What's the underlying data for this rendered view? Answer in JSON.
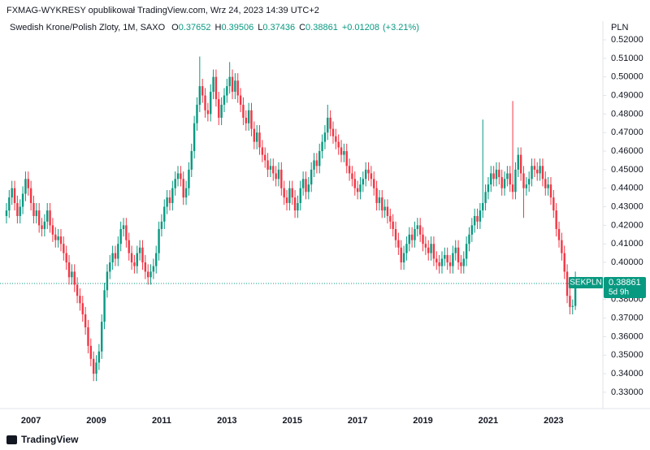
{
  "chart_data": {
    "type": "candlestick",
    "title": "FXMAG-WYKRESY opublikował TradingView.com, Wrz 24, 2023 14:39 UTC+2",
    "symbol": "Swedish Krone/Polish Zloty, 1M, SAXO",
    "ohlc_letters": [
      "O",
      "H",
      "L",
      "C"
    ],
    "change": "+0.01208",
    "change_pct": "(+3.21%)",
    "y_axis_label": "PLN",
    "ticker": "SEKPLN",
    "countdown": "5d 9h",
    "up_color": "#089981",
    "down_color": "#f23645",
    "ylim": [
      0.3212,
      0.5292
    ],
    "yticks": [
      {
        "value": 0.33,
        "label": "0.33000"
      },
      {
        "value": 0.34,
        "label": "0.34000"
      },
      {
        "value": 0.35,
        "label": "0.35000"
      },
      {
        "value": 0.36,
        "label": "0.36000"
      },
      {
        "value": 0.37,
        "label": "0.37000"
      },
      {
        "value": 0.38,
        "label": "0.38000"
      },
      {
        "value": 0.39,
        "label": "0.39000"
      },
      {
        "value": 0.4,
        "label": "0.40000"
      },
      {
        "value": 0.41,
        "label": "0.41000"
      },
      {
        "value": 0.42,
        "label": "0.42000"
      },
      {
        "value": 0.43,
        "label": "0.43000"
      },
      {
        "value": 0.44,
        "label": "0.44000"
      },
      {
        "value": 0.45,
        "label": "0.45000"
      },
      {
        "value": 0.46,
        "label": "0.46000"
      },
      {
        "value": 0.47,
        "label": "0.47000"
      },
      {
        "value": 0.48,
        "label": "0.48000"
      },
      {
        "value": 0.49,
        "label": "0.49000"
      },
      {
        "value": 0.5,
        "label": "0.50000"
      },
      {
        "value": 0.51,
        "label": "0.51000"
      },
      {
        "value": 0.52,
        "label": "0.52000"
      }
    ],
    "categories": [
      null,
      null,
      null,
      null,
      null,
      null,
      null,
      null,
      null,
      "2007",
      null,
      null,
      null,
      null,
      null,
      null,
      null,
      null,
      null,
      null,
      null,
      null,
      null,
      null,
      null,
      null,
      null,
      null,
      null,
      null,
      null,
      null,
      null,
      "2009",
      null,
      null,
      null,
      null,
      null,
      null,
      null,
      null,
      null,
      null,
      null,
      null,
      null,
      null,
      null,
      null,
      null,
      null,
      null,
      null,
      null,
      null,
      null,
      "2011",
      null,
      null,
      null,
      null,
      null,
      null,
      null,
      null,
      null,
      null,
      null,
      null,
      null,
      null,
      null,
      null,
      null,
      null,
      null,
      null,
      null,
      null,
      null,
      "2013",
      null,
      null,
      null,
      null,
      null,
      null,
      null,
      null,
      null,
      null,
      null,
      null,
      null,
      null,
      null,
      null,
      null,
      null,
      null,
      null,
      null,
      null,
      null,
      "2015",
      null,
      null,
      null,
      null,
      null,
      null,
      null,
      null,
      null,
      null,
      null,
      null,
      null,
      null,
      null,
      null,
      null,
      null,
      null,
      null,
      null,
      null,
      null,
      "2017",
      null,
      null,
      null,
      null,
      null,
      null,
      null,
      null,
      null,
      null,
      null,
      null,
      null,
      null,
      null,
      null,
      null,
      null,
      null,
      null,
      null,
      null,
      null,
      "2019",
      null,
      null,
      null,
      null,
      null,
      null,
      null,
      null,
      null,
      null,
      null,
      null,
      null,
      null,
      null,
      null,
      null,
      null,
      null,
      null,
      null,
      null,
      null,
      "2021",
      null,
      null,
      null,
      null,
      null,
      null,
      null,
      null,
      null,
      null,
      null,
      null,
      null,
      null,
      null,
      null,
      null,
      null,
      null,
      null,
      null,
      null,
      null,
      "2023",
      null,
      null,
      null,
      null,
      null,
      null,
      null,
      null
    ],
    "open": [
      0.425,
      0.428,
      0.435,
      0.44,
      0.432,
      0.425,
      0.43,
      0.437,
      0.445,
      0.44,
      0.432,
      0.425,
      0.428,
      0.42,
      0.418,
      0.422,
      0.428,
      0.42,
      0.415,
      0.412,
      0.414,
      0.41,
      0.405,
      0.4,
      0.392,
      0.395,
      0.388,
      0.382,
      0.378,
      0.372,
      0.365,
      0.355,
      0.348,
      0.34,
      0.346,
      0.352,
      0.368,
      0.385,
      0.395,
      0.4,
      0.405,
      0.402,
      0.41,
      0.418,
      0.42,
      0.412,
      0.405,
      0.4,
      0.398,
      0.405,
      0.408,
      0.4,
      0.395,
      0.392,
      0.395,
      0.398,
      0.405,
      0.418,
      0.422,
      0.43,
      0.435,
      0.432,
      0.44,
      0.445,
      0.448,
      0.445,
      0.435,
      0.44,
      0.45,
      0.46,
      0.475,
      0.485,
      0.495,
      0.49,
      0.482,
      0.48,
      0.492,
      0.5,
      0.488,
      0.478,
      0.485,
      0.49,
      0.495,
      0.5,
      0.492,
      0.498,
      0.49,
      0.485,
      0.478,
      0.475,
      0.482,
      0.472,
      0.465,
      0.47,
      0.462,
      0.458,
      0.455,
      0.45,
      0.452,
      0.448,
      0.445,
      0.45,
      0.44,
      0.435,
      0.432,
      0.44,
      0.435,
      0.428,
      0.432,
      0.44,
      0.445,
      0.438,
      0.442,
      0.45,
      0.455,
      0.452,
      0.46,
      0.465,
      0.47,
      0.478,
      0.472,
      0.468,
      0.465,
      0.462,
      0.458,
      0.46,
      0.452,
      0.448,
      0.445,
      0.44,
      0.438,
      0.442,
      0.445,
      0.45,
      0.448,
      0.445,
      0.44,
      0.432,
      0.435,
      0.428,
      0.43,
      0.425,
      0.422,
      0.418,
      0.412,
      0.408,
      0.4,
      0.405,
      0.41,
      0.415,
      0.412,
      0.418,
      0.42,
      0.415,
      0.41,
      0.408,
      0.405,
      0.41,
      0.402,
      0.4,
      0.398,
      0.402,
      0.404,
      0.4,
      0.398,
      0.405,
      0.408,
      0.4,
      0.398,
      0.402,
      0.41,
      0.415,
      0.42,
      0.425,
      0.422,
      0.428,
      0.432,
      0.438,
      0.442,
      0.448,
      0.445,
      0.45,
      0.446,
      0.44,
      0.445,
      0.448,
      0.442,
      0.438,
      0.45,
      0.458,
      0.448,
      0.44,
      0.442,
      0.445,
      0.452,
      0.45,
      0.448,
      0.452,
      0.445,
      0.44,
      0.442,
      0.435,
      0.428,
      0.418,
      0.412,
      0.405,
      0.395,
      0.382,
      0.376,
      0.37652
    ],
    "high": [
      0.432,
      0.439,
      0.444,
      0.444,
      0.436,
      0.434,
      0.441,
      0.449,
      0.449,
      0.444,
      0.436,
      0.432,
      0.432,
      0.424,
      0.426,
      0.432,
      0.432,
      0.424,
      0.419,
      0.418,
      0.418,
      0.414,
      0.409,
      0.404,
      0.399,
      0.399,
      0.392,
      0.386,
      0.382,
      0.376,
      0.369,
      0.359,
      0.352,
      0.35,
      0.356,
      0.372,
      0.389,
      0.399,
      0.404,
      0.409,
      0.409,
      0.414,
      0.422,
      0.424,
      0.424,
      0.416,
      0.409,
      0.404,
      0.409,
      0.412,
      0.412,
      0.404,
      0.399,
      0.399,
      0.402,
      0.409,
      0.422,
      0.426,
      0.434,
      0.439,
      0.439,
      0.444,
      0.449,
      0.452,
      0.452,
      0.449,
      0.444,
      0.454,
      0.464,
      0.479,
      0.489,
      0.511,
      0.499,
      0.494,
      0.486,
      0.496,
      0.504,
      0.504,
      0.492,
      0.489,
      0.494,
      0.499,
      0.508,
      0.504,
      0.502,
      0.502,
      0.494,
      0.489,
      0.482,
      0.486,
      0.486,
      0.476,
      0.474,
      0.474,
      0.466,
      0.462,
      0.459,
      0.456,
      0.456,
      0.452,
      0.454,
      0.454,
      0.444,
      0.439,
      0.444,
      0.444,
      0.439,
      0.436,
      0.444,
      0.449,
      0.449,
      0.446,
      0.454,
      0.459,
      0.459,
      0.464,
      0.469,
      0.474,
      0.485,
      0.482,
      0.476,
      0.472,
      0.469,
      0.466,
      0.464,
      0.464,
      0.456,
      0.452,
      0.449,
      0.444,
      0.446,
      0.449,
      0.454,
      0.454,
      0.452,
      0.449,
      0.444,
      0.439,
      0.439,
      0.434,
      0.434,
      0.429,
      0.426,
      0.422,
      0.416,
      0.412,
      0.409,
      0.414,
      0.419,
      0.419,
      0.422,
      0.424,
      0.424,
      0.419,
      0.414,
      0.412,
      0.414,
      0.414,
      0.406,
      0.404,
      0.406,
      0.408,
      0.408,
      0.404,
      0.409,
      0.412,
      0.412,
      0.404,
      0.406,
      0.414,
      0.419,
      0.424,
      0.429,
      0.429,
      0.432,
      0.477,
      0.442,
      0.446,
      0.452,
      0.452,
      0.454,
      0.454,
      0.45,
      0.449,
      0.452,
      0.452,
      0.487,
      0.454,
      0.462,
      0.462,
      0.452,
      0.446,
      0.449,
      0.456,
      0.456,
      0.454,
      0.456,
      0.456,
      0.449,
      0.446,
      0.446,
      0.439,
      0.432,
      0.422,
      0.416,
      0.409,
      0.399,
      0.386,
      0.38,
      0.39506
    ],
    "low": [
      0.421,
      0.424,
      0.431,
      0.428,
      0.421,
      0.421,
      0.426,
      0.433,
      0.436,
      0.428,
      0.421,
      0.421,
      0.416,
      0.414,
      0.414,
      0.418,
      0.416,
      0.411,
      0.408,
      0.408,
      0.406,
      0.401,
      0.396,
      0.388,
      0.388,
      0.384,
      0.378,
      0.374,
      0.368,
      0.361,
      0.351,
      0.344,
      0.336,
      0.336,
      0.342,
      0.348,
      0.364,
      0.381,
      0.391,
      0.396,
      0.398,
      0.398,
      0.406,
      0.414,
      0.408,
      0.401,
      0.396,
      0.394,
      0.394,
      0.401,
      0.396,
      0.391,
      0.388,
      0.388,
      0.391,
      0.394,
      0.401,
      0.414,
      0.418,
      0.426,
      0.428,
      0.428,
      0.436,
      0.441,
      0.441,
      0.431,
      0.431,
      0.436,
      0.446,
      0.456,
      0.471,
      0.481,
      0.486,
      0.478,
      0.476,
      0.476,
      0.488,
      0.484,
      0.474,
      0.474,
      0.481,
      0.486,
      0.491,
      0.488,
      0.488,
      0.486,
      0.481,
      0.474,
      0.471,
      0.471,
      0.468,
      0.461,
      0.461,
      0.458,
      0.454,
      0.451,
      0.446,
      0.446,
      0.444,
      0.441,
      0.441,
      0.436,
      0.431,
      0.428,
      0.428,
      0.431,
      0.424,
      0.424,
      0.428,
      0.436,
      0.434,
      0.434,
      0.438,
      0.446,
      0.448,
      0.448,
      0.456,
      0.461,
      0.466,
      0.468,
      0.464,
      0.461,
      0.458,
      0.454,
      0.454,
      0.448,
      0.444,
      0.441,
      0.436,
      0.434,
      0.434,
      0.438,
      0.441,
      0.444,
      0.441,
      0.436,
      0.428,
      0.428,
      0.424,
      0.424,
      0.421,
      0.418,
      0.414,
      0.408,
      0.404,
      0.396,
      0.396,
      0.401,
      0.406,
      0.408,
      0.408,
      0.414,
      0.411,
      0.406,
      0.404,
      0.401,
      0.401,
      0.398,
      0.396,
      0.394,
      0.394,
      0.398,
      0.396,
      0.394,
      0.394,
      0.401,
      0.396,
      0.394,
      0.394,
      0.398,
      0.406,
      0.411,
      0.416,
      0.418,
      0.418,
      0.424,
      0.428,
      0.434,
      0.438,
      0.441,
      0.441,
      0.442,
      0.436,
      0.436,
      0.441,
      0.438,
      0.434,
      0.434,
      0.446,
      0.444,
      0.424,
      0.436,
      0.438,
      0.441,
      0.446,
      0.444,
      0.444,
      0.441,
      0.436,
      0.436,
      0.431,
      0.424,
      0.414,
      0.408,
      0.401,
      0.391,
      0.378,
      0.372,
      0.372,
      0.37436
    ],
    "close": [
      0.428,
      0.435,
      0.44,
      0.432,
      0.425,
      0.43,
      0.437,
      0.445,
      0.44,
      0.432,
      0.425,
      0.428,
      0.42,
      0.418,
      0.422,
      0.428,
      0.42,
      0.415,
      0.412,
      0.414,
      0.41,
      0.405,
      0.4,
      0.392,
      0.395,
      0.388,
      0.382,
      0.378,
      0.372,
      0.365,
      0.355,
      0.348,
      0.34,
      0.346,
      0.352,
      0.368,
      0.385,
      0.395,
      0.4,
      0.405,
      0.402,
      0.41,
      0.418,
      0.42,
      0.412,
      0.405,
      0.4,
      0.398,
      0.405,
      0.408,
      0.4,
      0.395,
      0.392,
      0.395,
      0.398,
      0.405,
      0.418,
      0.422,
      0.43,
      0.435,
      0.432,
      0.44,
      0.445,
      0.448,
      0.445,
      0.435,
      0.44,
      0.45,
      0.46,
      0.475,
      0.485,
      0.495,
      0.49,
      0.482,
      0.48,
      0.492,
      0.5,
      0.488,
      0.478,
      0.485,
      0.49,
      0.495,
      0.5,
      0.492,
      0.498,
      0.49,
      0.485,
      0.478,
      0.475,
      0.482,
      0.472,
      0.465,
      0.47,
      0.462,
      0.458,
      0.455,
      0.45,
      0.452,
      0.448,
      0.445,
      0.45,
      0.44,
      0.435,
      0.432,
      0.44,
      0.435,
      0.428,
      0.432,
      0.44,
      0.445,
      0.438,
      0.442,
      0.45,
      0.455,
      0.452,
      0.46,
      0.465,
      0.47,
      0.478,
      0.472,
      0.468,
      0.465,
      0.462,
      0.458,
      0.46,
      0.452,
      0.448,
      0.445,
      0.44,
      0.438,
      0.442,
      0.445,
      0.45,
      0.448,
      0.445,
      0.44,
      0.432,
      0.435,
      0.428,
      0.43,
      0.425,
      0.422,
      0.418,
      0.412,
      0.408,
      0.4,
      0.405,
      0.41,
      0.415,
      0.412,
      0.418,
      0.42,
      0.415,
      0.41,
      0.408,
      0.405,
      0.41,
      0.402,
      0.4,
      0.398,
      0.402,
      0.404,
      0.4,
      0.398,
      0.405,
      0.408,
      0.4,
      0.398,
      0.402,
      0.41,
      0.415,
      0.42,
      0.425,
      0.422,
      0.428,
      0.432,
      0.438,
      0.442,
      0.448,
      0.445,
      0.45,
      0.446,
      0.44,
      0.445,
      0.448,
      0.442,
      0.438,
      0.45,
      0.458,
      0.448,
      0.44,
      0.442,
      0.445,
      0.452,
      0.45,
      0.448,
      0.452,
      0.445,
      0.44,
      0.442,
      0.435,
      0.428,
      0.418,
      0.412,
      0.405,
      0.395,
      0.382,
      0.376,
      0.37652,
      0.38861
    ]
  },
  "footer": "TradingView"
}
